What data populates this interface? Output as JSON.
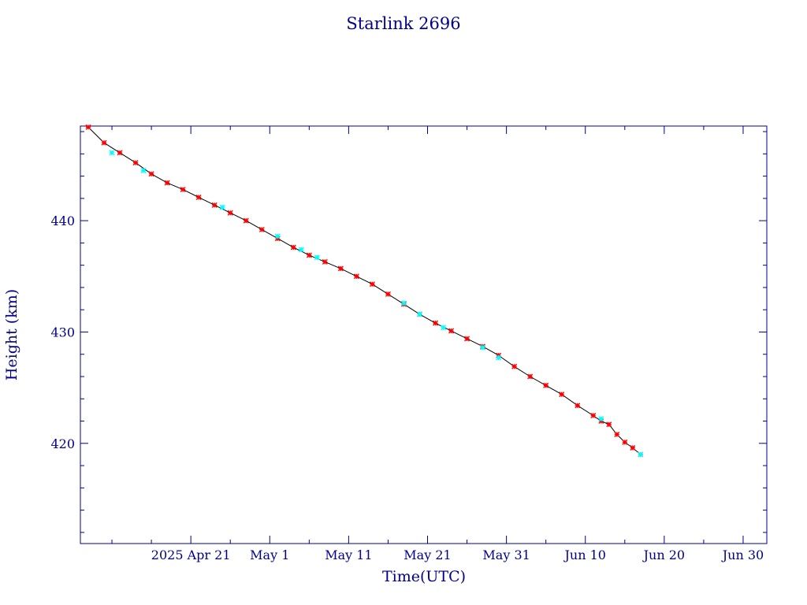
{
  "chart_data": {
    "type": "scatter",
    "title": "Starlink 2696",
    "xlabel": "Time(UTC)",
    "ylabel": "Height (km)",
    "xlim": [
      "2025-04-07",
      "2025-07-03"
    ],
    "ylim": [
      411,
      448.5
    ],
    "grid": false,
    "x_ticks": [
      {
        "date": "2025-04-21",
        "label": "2025 Apr 21"
      },
      {
        "date": "2025-05-01",
        "label": "May  1"
      },
      {
        "date": "2025-05-11",
        "label": "May 11"
      },
      {
        "date": "2025-05-21",
        "label": "May 21"
      },
      {
        "date": "2025-05-31",
        "label": "May 31"
      },
      {
        "date": "2025-06-10",
        "label": "Jun 10"
      },
      {
        "date": "2025-06-20",
        "label": "Jun 20"
      },
      {
        "date": "2025-06-30",
        "label": "Jun 30"
      }
    ],
    "y_ticks": [
      420,
      430,
      440
    ],
    "colors": {
      "axis": "#00008b",
      "line": "#000000",
      "marker": "#ff0000",
      "highlight": "#00ffff"
    },
    "series": [
      {
        "marker": "star",
        "color": "#ff0000",
        "points": [
          [
            "2025-04-08",
            448.4
          ],
          [
            "2025-04-10",
            447.0
          ],
          [
            "2025-04-12",
            446.1
          ],
          [
            "2025-04-14",
            445.2
          ],
          [
            "2025-04-16",
            444.2
          ],
          [
            "2025-04-18",
            443.4
          ],
          [
            "2025-04-20",
            442.8
          ],
          [
            "2025-04-22",
            442.1
          ],
          [
            "2025-04-24",
            441.4
          ],
          [
            "2025-04-26",
            440.7
          ],
          [
            "2025-04-28",
            440.0
          ],
          [
            "2025-04-30",
            439.2
          ],
          [
            "2025-05-02",
            438.4
          ],
          [
            "2025-05-04",
            437.6
          ],
          [
            "2025-05-06",
            436.9
          ],
          [
            "2025-05-08",
            436.3
          ],
          [
            "2025-05-10",
            435.7
          ],
          [
            "2025-05-12",
            435.0
          ],
          [
            "2025-05-14",
            434.3
          ],
          [
            "2025-05-16",
            433.4
          ],
          [
            "2025-05-18",
            432.5
          ],
          [
            "2025-05-20",
            431.6
          ],
          [
            "2025-05-22",
            430.8
          ],
          [
            "2025-05-24",
            430.1
          ],
          [
            "2025-05-26",
            429.4
          ],
          [
            "2025-05-28",
            428.7
          ],
          [
            "2025-05-30",
            427.9
          ],
          [
            "2025-06-01",
            426.9
          ],
          [
            "2025-06-03",
            426.0
          ],
          [
            "2025-06-05",
            425.2
          ],
          [
            "2025-06-07",
            424.4
          ],
          [
            "2025-06-09",
            423.4
          ],
          [
            "2025-06-11",
            422.5
          ],
          [
            "2025-06-12",
            422.0
          ],
          [
            "2025-06-13",
            421.7
          ],
          [
            "2025-06-14",
            420.8
          ],
          [
            "2025-06-15",
            420.1
          ],
          [
            "2025-06-16",
            419.6
          ],
          [
            "2025-06-17",
            419.0
          ]
        ]
      }
    ],
    "highlighted_points": [
      [
        "2025-04-11",
        446.1
      ],
      [
        "2025-04-15",
        444.5
      ],
      [
        "2025-04-25",
        441.2
      ],
      [
        "2025-05-02",
        438.6
      ],
      [
        "2025-05-05",
        437.4
      ],
      [
        "2025-05-07",
        436.7
      ],
      [
        "2025-05-18",
        432.6
      ],
      [
        "2025-05-20",
        431.6
      ],
      [
        "2025-05-23",
        430.4
      ],
      [
        "2025-05-28",
        428.6
      ],
      [
        "2025-05-30",
        427.7
      ],
      [
        "2025-06-12",
        422.2
      ],
      [
        "2025-06-17",
        419.0
      ]
    ]
  }
}
